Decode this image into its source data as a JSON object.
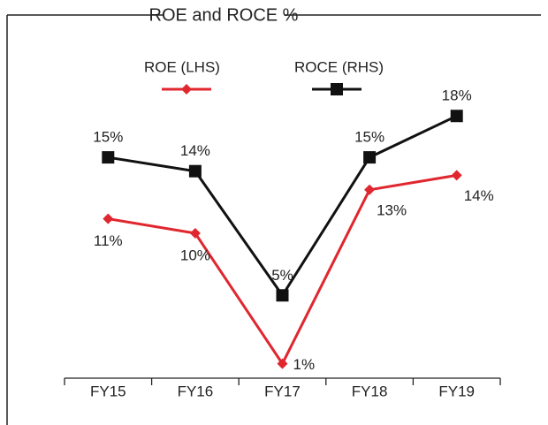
{
  "chart_data": {
    "type": "line",
    "title": "ROE and ROCE %",
    "categories": [
      "FY15",
      "FY16",
      "FY17",
      "FY18",
      "FY19"
    ],
    "series": [
      {
        "name": "ROE (LHS)",
        "color": "#e0262e",
        "marker": "diamond",
        "values": [
          11,
          10,
          1,
          13,
          14
        ],
        "value_labels": [
          "11%",
          "10%",
          "1%",
          "13%",
          "14%"
        ]
      },
      {
        "name": "ROCE (RHS)",
        "color": "#111111",
        "marker": "square",
        "axis": "y2",
        "values": [
          15,
          14,
          5,
          15,
          18
        ],
        "value_labels": [
          "15%",
          "14%",
          "5%",
          "15%",
          "18%"
        ]
      }
    ],
    "ylim": [
      0,
      20
    ],
    "y2lim": [
      -1,
      20
    ],
    "grid": false
  }
}
